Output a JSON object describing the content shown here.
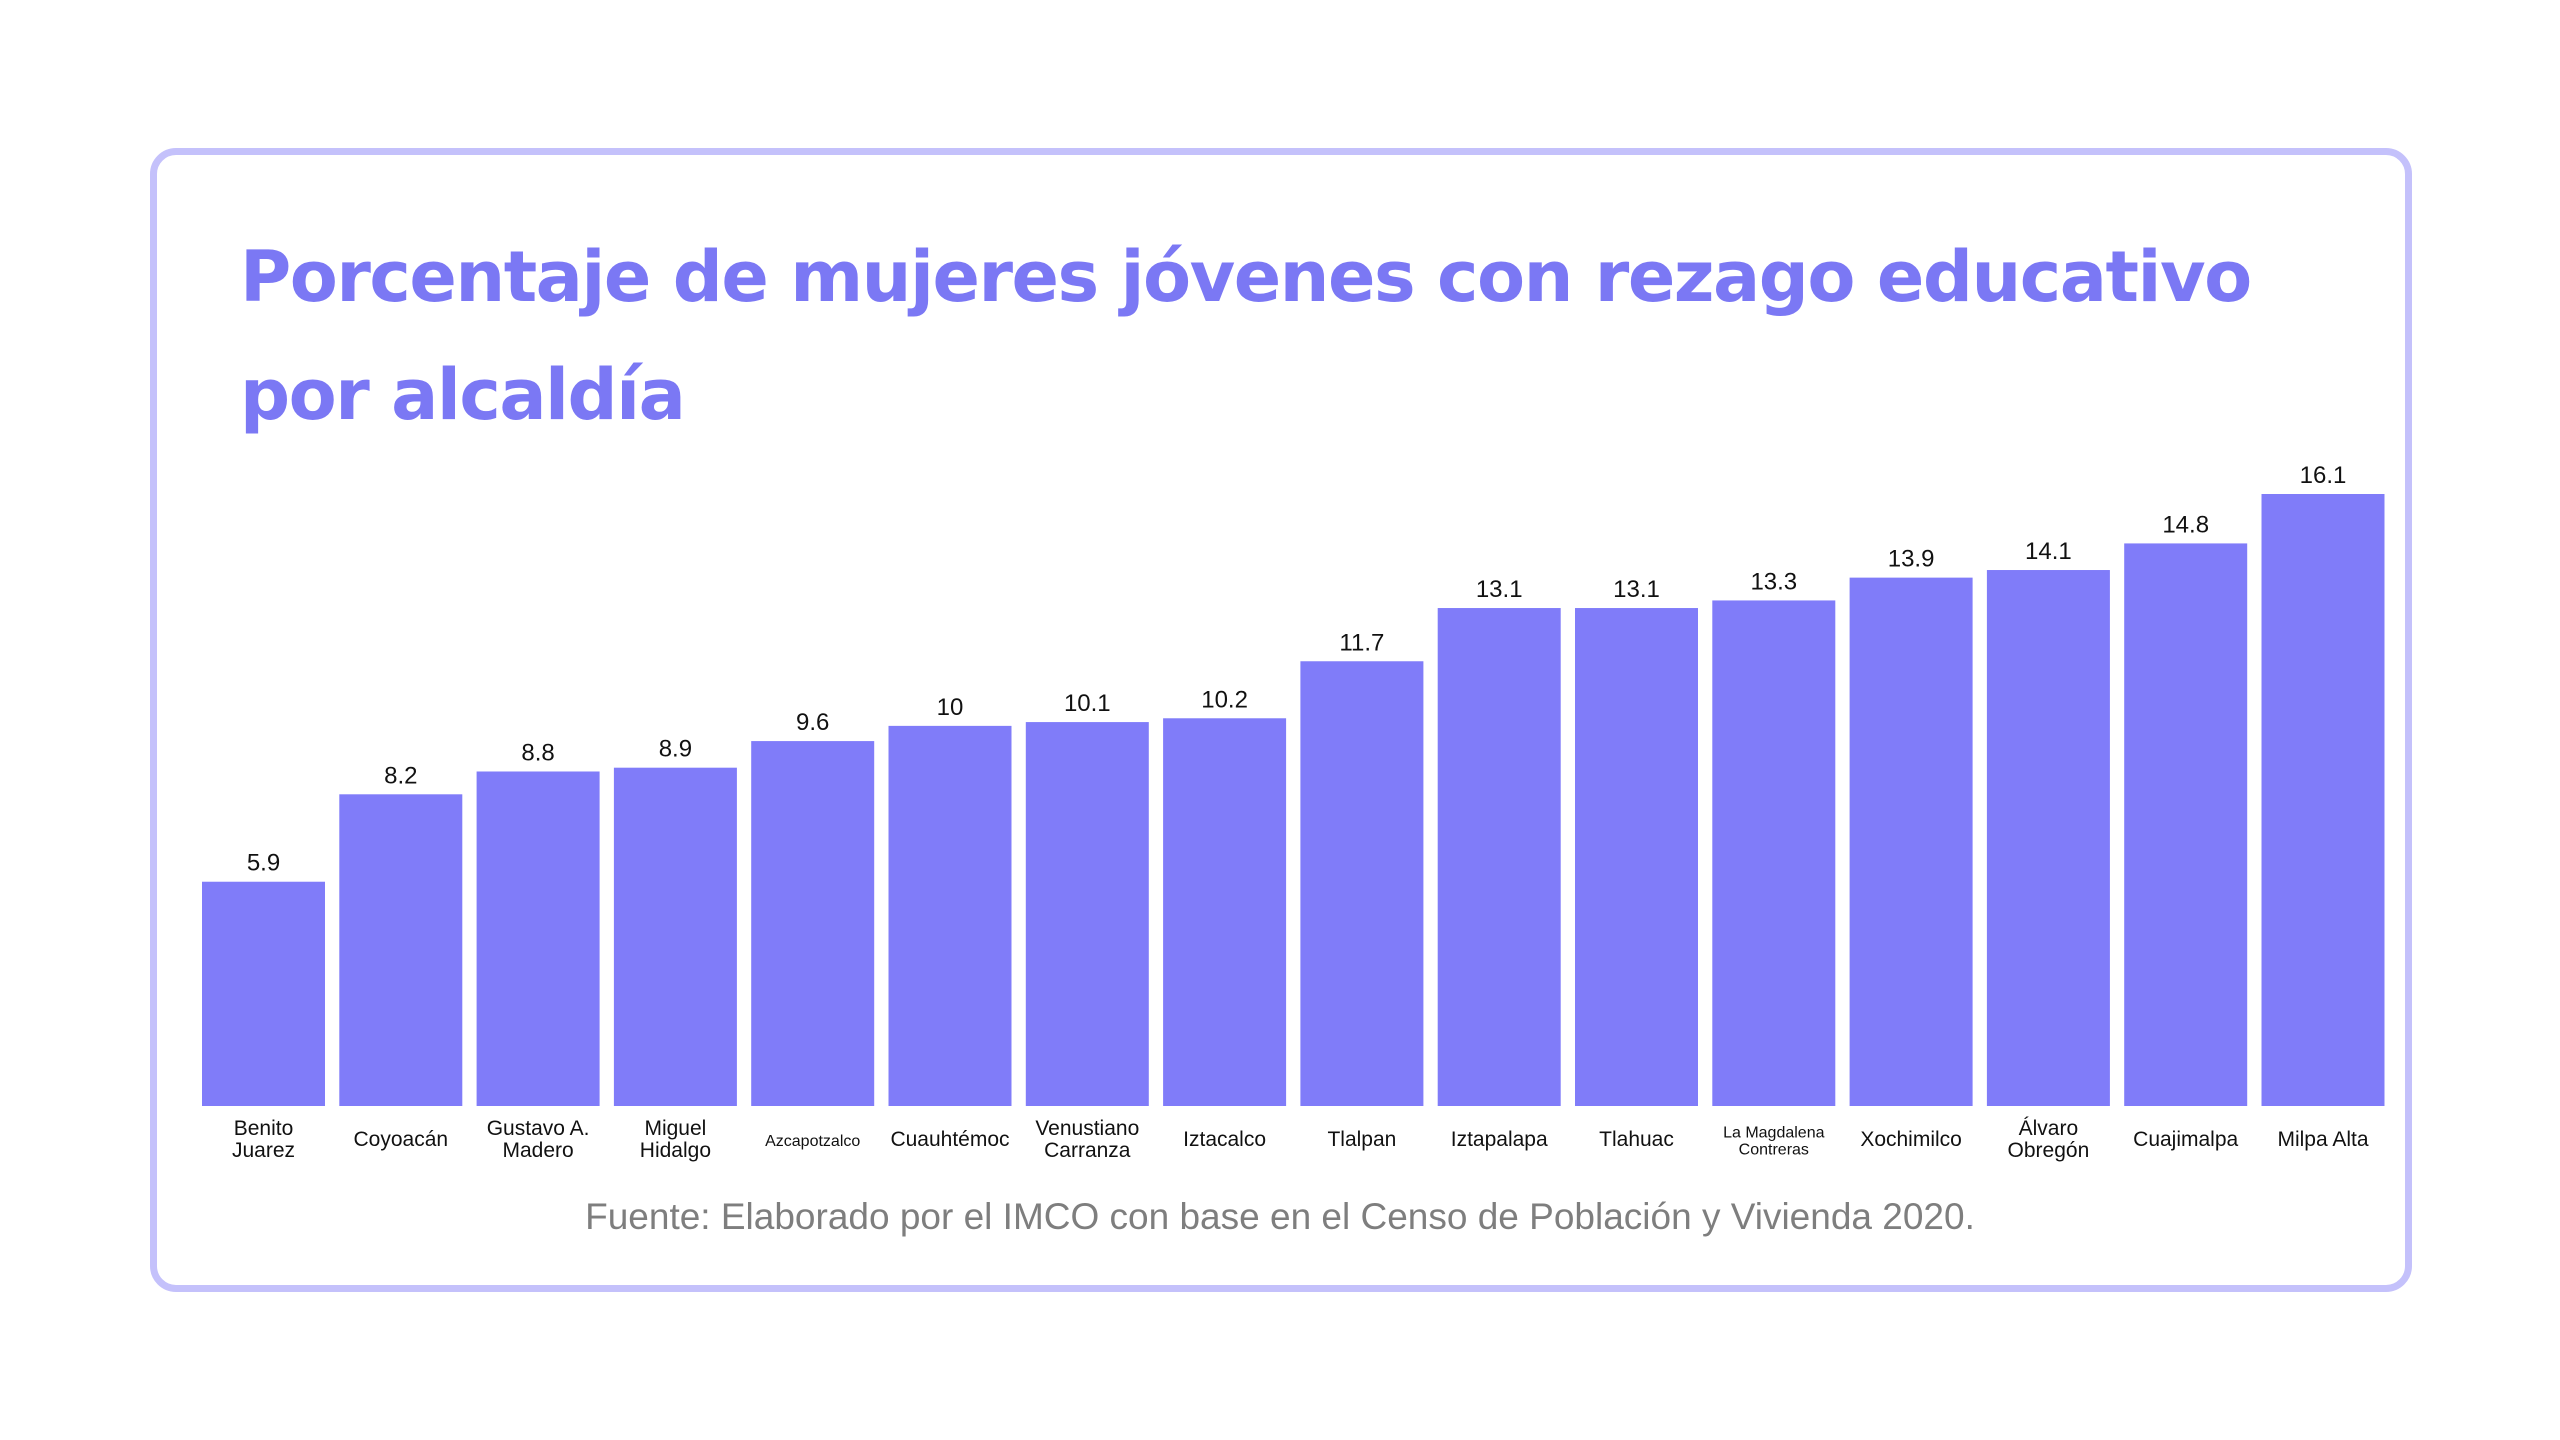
{
  "chart_data": {
    "type": "bar",
    "title": "Porcentaje de mujeres jóvenes con rezago educativo por alcaldía",
    "categories": [
      [
        "Benito",
        "Juarez"
      ],
      [
        "Coyoacán"
      ],
      [
        "Gustavo A.",
        "Madero"
      ],
      [
        "Miguel",
        "Hidalgo"
      ],
      [
        "Azcapotzalco"
      ],
      [
        "Cuauhtémoc"
      ],
      [
        "Venustiano",
        "Carranza"
      ],
      [
        "Iztacalco"
      ],
      [
        "Tlalpan"
      ],
      [
        "Iztapalapa"
      ],
      [
        "Tlahuac"
      ],
      [
        "La Magdalena",
        "Contreras"
      ],
      [
        "Xochimilco"
      ],
      [
        "Álvaro",
        "Obregón"
      ],
      [
        "Cuajimalpa"
      ],
      [
        "Milpa Alta"
      ]
    ],
    "values": [
      5.9,
      8.2,
      8.8,
      8.9,
      9.6,
      10,
      10.1,
      10.2,
      11.7,
      13.1,
      13.1,
      13.3,
      13.9,
      14.1,
      14.8,
      16.1
    ],
    "value_labels": [
      "5.9",
      "8.2",
      "8.8",
      "8.9",
      "9.6",
      "10",
      "10.1",
      "10.2",
      "11.7",
      "13.1",
      "13.1",
      "13.3",
      "13.9",
      "14.1",
      "14.8",
      "16.1"
    ],
    "xlabel": "",
    "ylabel": "",
    "ylim": [
      0,
      16.1
    ],
    "grid": false,
    "legend": "none",
    "colors": {
      "bar": "#807cf9",
      "title": "#7b78f4",
      "border": "#c4c1fb",
      "source": "#7e7e7e"
    }
  },
  "source_note": "Fuente: Elaborado por el IMCO con base en el Censo de Población y Vivienda 2020."
}
